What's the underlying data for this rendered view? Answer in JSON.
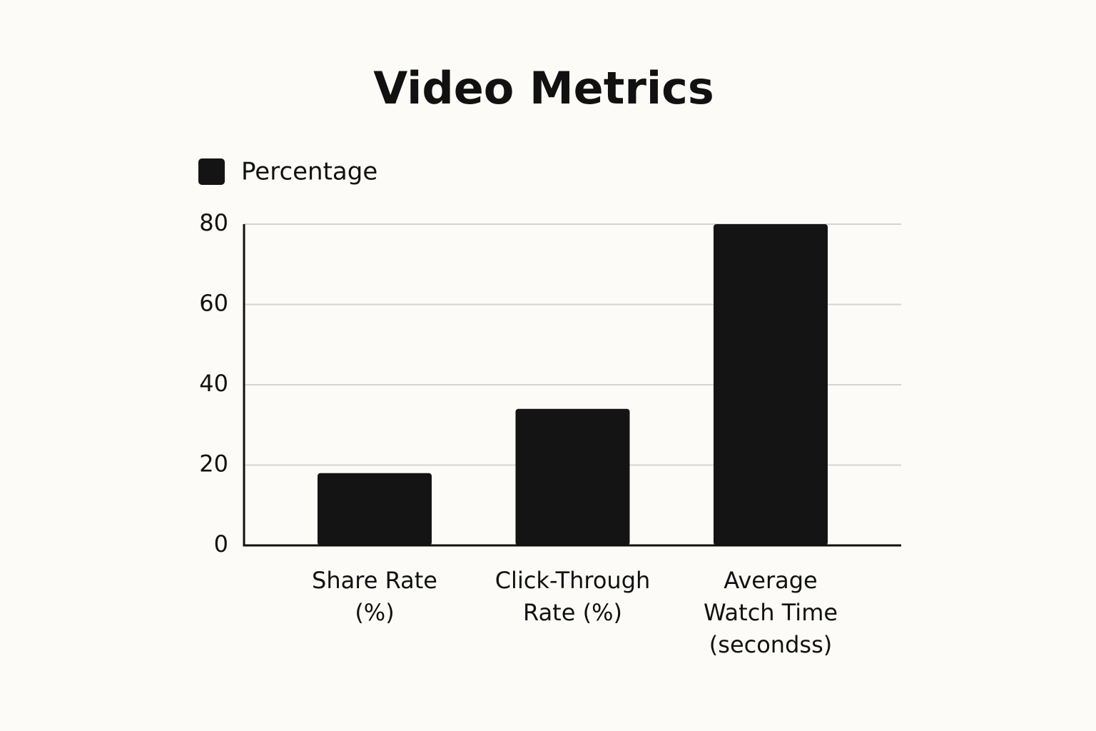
{
  "chart_data": {
    "type": "bar",
    "title": "Video Metrics",
    "categories": [
      "Share Rate\n(%)",
      "Click-Through\nRate (%)",
      "Average\nWatch Time\n(secondss)"
    ],
    "series": [
      {
        "name": "Percentage",
        "color": "#141414",
        "values": [
          18,
          34,
          80
        ]
      }
    ],
    "ylim": [
      0,
      80
    ],
    "yticks": [
      0,
      20,
      40,
      60,
      80
    ],
    "grid": true,
    "legend": "top-left"
  }
}
